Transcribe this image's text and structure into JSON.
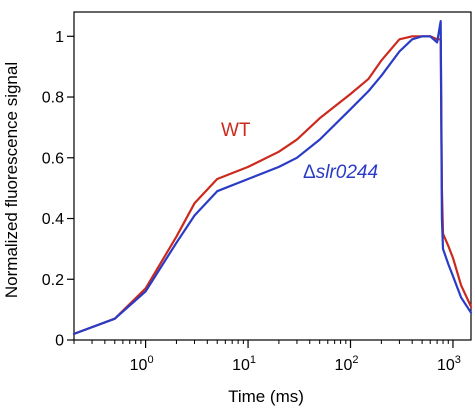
{
  "chart_data": {
    "type": "line",
    "xscale": "log",
    "xlim": [
      0.2,
      1500
    ],
    "ylim": [
      0,
      1.08
    ],
    "xlabel": "Time (ms)",
    "ylabel": "Normalized fluorescence signal",
    "x_ticks": [
      {
        "value": 1,
        "base": "10",
        "exp": "0"
      },
      {
        "value": 10,
        "base": "10",
        "exp": "1"
      },
      {
        "value": 100,
        "base": "10",
        "exp": "2"
      },
      {
        "value": 1000,
        "base": "10",
        "exp": "3"
      }
    ],
    "y_ticks": [
      {
        "value": 0,
        "label": "0"
      },
      {
        "value": 0.2,
        "label": "0.2"
      },
      {
        "value": 0.4,
        "label": "0.4"
      },
      {
        "value": 0.6,
        "label": "0.6"
      },
      {
        "value": 0.8,
        "label": "0.8"
      },
      {
        "value": 1,
        "label": "1"
      }
    ],
    "grid": false,
    "series": [
      {
        "name": "WT",
        "name_prefix": "",
        "color": "#cc2a1e",
        "x": [
          0.2,
          0.5,
          1,
          2,
          3,
          5,
          10,
          20,
          30,
          50,
          100,
          150,
          200,
          300,
          400,
          500,
          600,
          700,
          760,
          780,
          800,
          900,
          1000,
          1200,
          1500
        ],
        "y": [
          0.02,
          0.07,
          0.17,
          0.34,
          0.45,
          0.53,
          0.57,
          0.62,
          0.66,
          0.73,
          0.81,
          0.86,
          0.92,
          0.99,
          1.0,
          1.0,
          1.0,
          0.99,
          0.99,
          0.5,
          0.35,
          0.31,
          0.27,
          0.18,
          0.11
        ]
      },
      {
        "name": "slr0244",
        "name_prefix": "Δ",
        "color": "#2a3cc6",
        "x": [
          0.2,
          0.5,
          1,
          2,
          3,
          5,
          10,
          20,
          30,
          50,
          100,
          150,
          200,
          300,
          400,
          500,
          600,
          700,
          760,
          780,
          800,
          900,
          1000,
          1200,
          1500
        ],
        "y": [
          0.02,
          0.07,
          0.16,
          0.32,
          0.41,
          0.49,
          0.53,
          0.57,
          0.6,
          0.66,
          0.76,
          0.82,
          0.87,
          0.95,
          0.99,
          1.0,
          1.0,
          0.98,
          1.05,
          0.4,
          0.3,
          0.25,
          0.21,
          0.14,
          0.09
        ]
      }
    ]
  }
}
